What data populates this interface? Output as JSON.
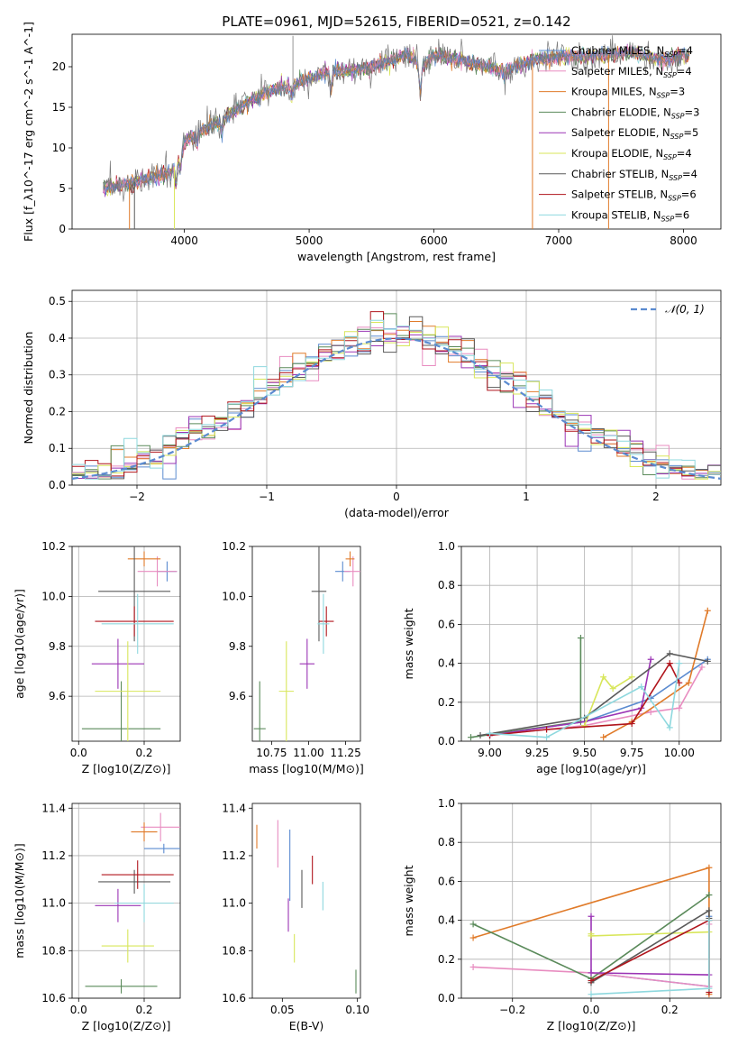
{
  "figure": {
    "title": "PLATE=0961, MJD=52615, FIBERID=0521, z=0.142"
  },
  "models": [
    {
      "name": "Chabrier MILES",
      "nssp": 4,
      "color": "#5b8bd0"
    },
    {
      "name": "Salpeter MILES",
      "nssp": 4,
      "color": "#e88cc0"
    },
    {
      "name": "Kroupa MILES",
      "nssp": 3,
      "color": "#e07b2a"
    },
    {
      "name": "Chabrier ELODIE",
      "nssp": 3,
      "color": "#5a8a5a"
    },
    {
      "name": "Salpeter ELODIE",
      "nssp": 5,
      "color": "#9b35b5"
    },
    {
      "name": "Kroupa ELODIE",
      "nssp": 4,
      "color": "#d8e65a"
    },
    {
      "name": "Chabrier STELIB",
      "nssp": 4,
      "color": "#5a5a5a"
    },
    {
      "name": "Salpeter STELIB",
      "nssp": 6,
      "color": "#b0151c"
    },
    {
      "name": "Kroupa STELIB",
      "nssp": 6,
      "color": "#8ed8de"
    }
  ],
  "chart_data": [
    {
      "id": "spectrum",
      "type": "line",
      "xlabel": "wavelength [Angstrom, rest frame]",
      "ylabel": "Flux [f_λ10^-17 erg cm^-2 s^-1 A^-1]",
      "xlim": [
        3100,
        8300
      ],
      "ylim": [
        0,
        24
      ],
      "xticks": [
        4000,
        5000,
        6000,
        7000,
        8000
      ],
      "yticks": [
        0,
        5,
        10,
        15,
        20
      ],
      "continuum": [
        [
          3350,
          5.2
        ],
        [
          3500,
          5.4
        ],
        [
          3700,
          6.2
        ],
        [
          3900,
          7.0
        ],
        [
          4000,
          10.5
        ],
        [
          4100,
          11.8
        ],
        [
          4300,
          13.5
        ],
        [
          4500,
          15.5
        ],
        [
          4700,
          17.2
        ],
        [
          4850,
          17.6
        ],
        [
          5000,
          18.5
        ],
        [
          5200,
          19.5
        ],
        [
          5400,
          19.6
        ],
        [
          5600,
          20.5
        ],
        [
          5800,
          21.5
        ],
        [
          5900,
          20.0
        ],
        [
          6000,
          21.5
        ],
        [
          6300,
          20.5
        ],
        [
          6560,
          19.5
        ],
        [
          6800,
          20.8
        ],
        [
          7000,
          21.2
        ],
        [
          7200,
          21.3
        ],
        [
          7400,
          21.4
        ],
        [
          7600,
          21.8
        ],
        [
          7800,
          20.8
        ],
        [
          8050,
          21.5
        ]
      ]
    },
    {
      "id": "residuals",
      "type": "line",
      "xlabel": "(data-model)/error",
      "ylabel": "Normed distribution",
      "xlim": [
        -2.5,
        2.5
      ],
      "ylim": [
        0,
        0.53
      ],
      "xticks": [
        -2,
        -1,
        0,
        1,
        2
      ],
      "yticks": [
        0.0,
        0.1,
        0.2,
        0.3,
        0.4,
        0.5
      ],
      "gaussian_legend": "𝒩(0, 1)"
    },
    {
      "id": "age-vs-Z",
      "type": "scatter",
      "xlabel": "Z [log10(Z/Z⊙)]",
      "ylabel": "age  [log10(age/yr)]",
      "xlim": [
        -0.02,
        0.31
      ],
      "ylim": [
        9.42,
        10.2
      ],
      "xticks": [
        0.0,
        0.2
      ],
      "yticks": [
        9.6,
        9.8,
        10.0,
        10.2
      ],
      "points": [
        {
          "m": 0,
          "x": 0.27,
          "y": 10.1,
          "xerr": 0.03,
          "yerr": 0.04
        },
        {
          "m": 1,
          "x": 0.24,
          "y": 10.1,
          "xerr": 0.06,
          "yerr": 0.06
        },
        {
          "m": 2,
          "x": 0.2,
          "y": 10.15,
          "xerr": 0.05,
          "yerr": 0.03
        },
        {
          "m": 3,
          "x": 0.13,
          "y": 9.47,
          "xerr": 0.12,
          "yerr": 0.19
        },
        {
          "m": 4,
          "x": 0.12,
          "y": 9.73,
          "xerr": 0.08,
          "yerr": 0.1
        },
        {
          "m": 5,
          "x": 0.15,
          "y": 9.62,
          "xerr": 0.1,
          "yerr": 0.2
        },
        {
          "m": 6,
          "x": 0.17,
          "y": 10.02,
          "xerr": 0.11,
          "yerr": 0.2
        },
        {
          "m": 7,
          "x": 0.17,
          "y": 9.9,
          "xerr": 0.12,
          "yerr": 0.06
        },
        {
          "m": 8,
          "x": 0.18,
          "y": 9.89,
          "xerr": 0.11,
          "yerr": 0.12
        }
      ]
    },
    {
      "id": "age-vs-mass",
      "type": "scatter",
      "xlabel": "mass [log10(M/M⊙)]",
      "ylabel": "",
      "xlim": [
        10.62,
        11.35
      ],
      "ylim": [
        9.42,
        10.2
      ],
      "xticks": [
        10.75,
        11.0,
        11.25
      ],
      "yticks": [
        9.6,
        9.8,
        10.0,
        10.2
      ],
      "points": [
        {
          "m": 0,
          "x": 11.23,
          "y": 10.1,
          "xerr": 0.05,
          "yerr": 0.04
        },
        {
          "m": 1,
          "x": 11.3,
          "y": 10.1,
          "xerr": 0.06,
          "yerr": 0.06
        },
        {
          "m": 2,
          "x": 11.28,
          "y": 10.15,
          "xerr": 0.03,
          "yerr": 0.03
        },
        {
          "m": 3,
          "x": 10.67,
          "y": 9.47,
          "xerr": 0.04,
          "yerr": 0.19
        },
        {
          "m": 4,
          "x": 10.99,
          "y": 9.73,
          "xerr": 0.05,
          "yerr": 0.1
        },
        {
          "m": 5,
          "x": 10.85,
          "y": 9.62,
          "xerr": 0.05,
          "yerr": 0.2
        },
        {
          "m": 6,
          "x": 11.07,
          "y": 10.02,
          "xerr": 0.05,
          "yerr": 0.2
        },
        {
          "m": 7,
          "x": 11.12,
          "y": 9.9,
          "xerr": 0.05,
          "yerr": 0.06
        },
        {
          "m": 8,
          "x": 11.1,
          "y": 9.89,
          "xerr": 0.04,
          "yerr": 0.12
        }
      ]
    },
    {
      "id": "weight-vs-age",
      "type": "line",
      "xlabel": "age  [log10(age/yr)]",
      "ylabel": "mass weight",
      "xlim": [
        8.85,
        10.22
      ],
      "ylim": [
        0,
        1.0
      ],
      "xticks": [
        9.0,
        9.25,
        9.5,
        9.75,
        10.0
      ],
      "yticks": [
        0.0,
        0.2,
        0.4,
        0.6,
        0.8,
        1.0
      ],
      "series": [
        {
          "m": 0,
          "points": [
            [
              9.0,
              0.03
            ],
            [
              9.5,
              0.1
            ],
            [
              9.85,
              0.22
            ],
            [
              10.15,
              0.42
            ]
          ]
        },
        {
          "m": 1,
          "points": [
            [
              9.0,
              0.03
            ],
            [
              9.5,
              0.08
            ],
            [
              9.85,
              0.15
            ],
            [
              10.0,
              0.17
            ],
            [
              10.12,
              0.38
            ]
          ]
        },
        {
          "m": 2,
          "points": [
            [
              9.6,
              0.02
            ],
            [
              9.75,
              0.1
            ],
            [
              10.05,
              0.3
            ],
            [
              10.15,
              0.67
            ]
          ]
        },
        {
          "m": 3,
          "points": [
            [
              8.9,
              0.02
            ],
            [
              9.48,
              0.1
            ],
            [
              9.48,
              0.53
            ]
          ]
        },
        {
          "m": 4,
          "points": [
            [
              9.0,
              0.03
            ],
            [
              9.5,
              0.1
            ],
            [
              9.8,
              0.17
            ],
            [
              9.85,
              0.42
            ]
          ]
        },
        {
          "m": 5,
          "points": [
            [
              9.5,
              0.08
            ],
            [
              9.6,
              0.33
            ],
            [
              9.65,
              0.27
            ],
            [
              9.75,
              0.33
            ]
          ]
        },
        {
          "m": 6,
          "points": [
            [
              8.95,
              0.03
            ],
            [
              9.5,
              0.12
            ],
            [
              9.95,
              0.45
            ],
            [
              10.15,
              0.41
            ]
          ]
        },
        {
          "m": 7,
          "points": [
            [
              9.0,
              0.03
            ],
            [
              9.3,
              0.06
            ],
            [
              9.75,
              0.09
            ],
            [
              9.95,
              0.4
            ],
            [
              10.0,
              0.3
            ]
          ]
        },
        {
          "m": 8,
          "points": [
            [
              9.0,
              0.04
            ],
            [
              9.3,
              0.02
            ],
            [
              9.8,
              0.28
            ],
            [
              9.95,
              0.07
            ],
            [
              10.0,
              0.4
            ]
          ]
        }
      ]
    },
    {
      "id": "mass-vs-Z",
      "type": "scatter",
      "xlabel": "Z [log10(Z/Z⊙)]",
      "ylabel": "mass [log10(M/M⊙)]",
      "xlim": [
        -0.02,
        0.31
      ],
      "ylim": [
        10.6,
        11.42
      ],
      "xticks": [
        0.0,
        0.2
      ],
      "yticks": [
        10.6,
        10.8,
        11.0,
        11.2,
        11.4
      ],
      "points": [
        {
          "m": 0,
          "x": 0.26,
          "y": 11.23,
          "xerr": 0.06,
          "yerr": 0.02
        },
        {
          "m": 1,
          "x": 0.25,
          "y": 11.32,
          "xerr": 0.06,
          "yerr": 0.06
        },
        {
          "m": 2,
          "x": 0.2,
          "y": 11.3,
          "xerr": 0.04,
          "yerr": 0.04
        },
        {
          "m": 3,
          "x": 0.13,
          "y": 10.65,
          "xerr": 0.11,
          "yerr": 0.03
        },
        {
          "m": 4,
          "x": 0.12,
          "y": 10.99,
          "xerr": 0.07,
          "yerr": 0.07
        },
        {
          "m": 5,
          "x": 0.15,
          "y": 10.82,
          "xerr": 0.08,
          "yerr": 0.07
        },
        {
          "m": 6,
          "x": 0.17,
          "y": 11.09,
          "xerr": 0.11,
          "yerr": 0.05
        },
        {
          "m": 7,
          "x": 0.18,
          "y": 11.12,
          "xerr": 0.11,
          "yerr": 0.06
        },
        {
          "m": 8,
          "x": 0.2,
          "y": 11.0,
          "xerr": 0.09,
          "yerr": 0.08
        }
      ]
    },
    {
      "id": "mass-vs-EBV",
      "type": "scatter",
      "xlabel": "E(B-V)",
      "ylabel": "",
      "xlim": [
        0.03,
        0.102
      ],
      "ylim": [
        10.6,
        11.42
      ],
      "xticks": [
        0.05,
        0.1
      ],
      "yticks": [
        10.6,
        10.8,
        11.0,
        11.2,
        11.4
      ],
      "points": [
        {
          "m": 0,
          "x": 0.055,
          "y": 11.16,
          "xerr": 0.0,
          "yerr": 0.15
        },
        {
          "m": 1,
          "x": 0.047,
          "y": 11.25,
          "xerr": 0.0,
          "yerr": 0.1
        },
        {
          "m": 2,
          "x": 0.033,
          "y": 11.28,
          "xerr": 0.0,
          "yerr": 0.05
        },
        {
          "m": 3,
          "x": 0.099,
          "y": 10.67,
          "xerr": 0.0,
          "yerr": 0.05
        },
        {
          "m": 4,
          "x": 0.054,
          "y": 10.95,
          "xerr": 0.0,
          "yerr": 0.07
        },
        {
          "m": 5,
          "x": 0.058,
          "y": 10.81,
          "xerr": 0.0,
          "yerr": 0.06
        },
        {
          "m": 6,
          "x": 0.063,
          "y": 11.06,
          "xerr": 0.0,
          "yerr": 0.08
        },
        {
          "m": 7,
          "x": 0.07,
          "y": 11.14,
          "xerr": 0.0,
          "yerr": 0.06
        },
        {
          "m": 8,
          "x": 0.077,
          "y": 11.03,
          "xerr": 0.0,
          "yerr": 0.06
        }
      ]
    },
    {
      "id": "weight-vs-Z",
      "type": "line",
      "xlabel": "Z [log10(Z/Z⊙)]",
      "ylabel": "mass weight",
      "xlim": [
        -0.33,
        0.33
      ],
      "ylim": [
        0,
        1.0
      ],
      "xticks": [
        -0.2,
        0.0,
        0.2
      ],
      "yticks": [
        0.0,
        0.2,
        0.4,
        0.6,
        0.8,
        1.0
      ],
      "series": [
        {
          "m": 0,
          "points": [
            [
              0.0,
              0.13
            ],
            [
              0.3,
              0.06
            ],
            [
              0.3,
              0.42
            ]
          ]
        },
        {
          "m": 1,
          "points": [
            [
              -0.3,
              0.16
            ],
            [
              0.0,
              0.13
            ],
            [
              0.3,
              0.06
            ],
            [
              0.3,
              0.38
            ]
          ]
        },
        {
          "m": 2,
          "points": [
            [
              -0.3,
              0.31
            ],
            [
              0.3,
              0.67
            ],
            [
              0.3,
              0.02
            ]
          ]
        },
        {
          "m": 3,
          "points": [
            [
              -0.3,
              0.38
            ],
            [
              0.0,
              0.1
            ],
            [
              0.3,
              0.53
            ]
          ]
        },
        {
          "m": 4,
          "points": [
            [
              0.0,
              0.42
            ],
            [
              0.0,
              0.13
            ],
            [
              0.3,
              0.12
            ]
          ]
        },
        {
          "m": 5,
          "points": [
            [
              0.0,
              0.33
            ],
            [
              0.0,
              0.32
            ],
            [
              0.3,
              0.34
            ]
          ]
        },
        {
          "m": 6,
          "points": [
            [
              0.0,
              0.08
            ],
            [
              0.3,
              0.45
            ],
            [
              0.3,
              0.41
            ]
          ]
        },
        {
          "m": 7,
          "points": [
            [
              0.0,
              0.09
            ],
            [
              0.3,
              0.4
            ],
            [
              0.3,
              0.03
            ]
          ]
        },
        {
          "m": 8,
          "points": [
            [
              0.0,
              0.02
            ],
            [
              0.3,
              0.05
            ],
            [
              0.3,
              0.4
            ]
          ]
        }
      ]
    }
  ]
}
